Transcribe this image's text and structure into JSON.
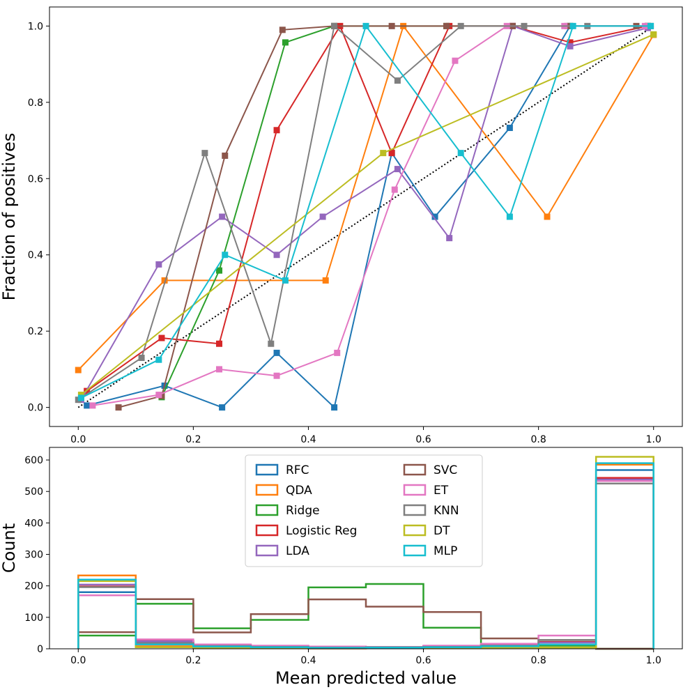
{
  "chart_data": [
    {
      "type": "line",
      "ylabel": "Fraction of positives",
      "xlim": [
        -0.05,
        1.05
      ],
      "ylim": [
        -0.05,
        1.05
      ],
      "xticks": [
        "0.0",
        "0.2",
        "0.4",
        "0.6",
        "0.8",
        "1.0"
      ],
      "yticks": [
        "0.0",
        "0.2",
        "0.4",
        "0.6",
        "0.8",
        "1.0"
      ],
      "xtick_values": [
        0,
        0.2,
        0.4,
        0.6,
        0.8,
        1.0
      ],
      "ytick_values": [
        0,
        0.2,
        0.4,
        0.6,
        0.8,
        1.0
      ],
      "reference_line": {
        "x": [
          0,
          1
        ],
        "y": [
          0,
          1
        ],
        "style": "dotted",
        "color": "#000000"
      },
      "series": [
        {
          "name": "RFC",
          "color": "#1f77b4",
          "x": [
            0.015,
            0.15,
            0.25,
            0.345,
            0.445,
            0.545,
            0.62,
            0.75,
            0.855,
            0.99
          ],
          "y": [
            0.005,
            0.057,
            0.0,
            0.143,
            0.0,
            0.667,
            0.5,
            0.733,
            1.0,
            1.0
          ]
        },
        {
          "name": "QDA",
          "color": "#ff7f0e",
          "x": [
            0.0,
            0.15,
            0.43,
            0.565,
            0.815,
            1.0
          ],
          "y": [
            0.098,
            0.333,
            0.333,
            1.0,
            0.5,
            0.977
          ]
        },
        {
          "name": "Ridge",
          "color": "#2ca02c",
          "x": [
            0.145,
            0.245,
            0.36,
            0.445,
            0.64,
            0.855,
            0.99
          ],
          "y": [
            0.027,
            0.359,
            0.957,
            1.0,
            1.0,
            1.0,
            1.0
          ]
        },
        {
          "name": "Logistic Reg",
          "color": "#d62728",
          "x": [
            0.015,
            0.145,
            0.245,
            0.345,
            0.455,
            0.545,
            0.645,
            0.755,
            0.855,
            0.99
          ],
          "y": [
            0.043,
            0.182,
            0.167,
            0.727,
            1.0,
            0.667,
            1.0,
            1.0,
            0.957,
            1.0
          ]
        },
        {
          "name": "LDA",
          "color": "#9467bd",
          "x": [
            0.005,
            0.14,
            0.25,
            0.345,
            0.425,
            0.555,
            0.645,
            0.755,
            0.855,
            0.99
          ],
          "y": [
            0.02,
            0.375,
            0.5,
            0.4,
            0.5,
            0.625,
            0.444,
            1.0,
            0.947,
            0.995
          ]
        },
        {
          "name": "SVC",
          "color": "#8c564b",
          "x": [
            0.07,
            0.145,
            0.255,
            0.355,
            0.445,
            0.545,
            0.64,
            0.755,
            0.85,
            0.97
          ],
          "y": [
            0.0,
            0.03,
            0.66,
            0.99,
            1.0,
            1.0,
            1.0,
            1.0,
            1.0,
            1.0
          ]
        },
        {
          "name": "ET",
          "color": "#e377c2",
          "x": [
            0.025,
            0.14,
            0.245,
            0.345,
            0.45,
            0.55,
            0.655,
            0.745,
            0.845,
            0.985
          ],
          "y": [
            0.005,
            0.033,
            0.1,
            0.083,
            0.143,
            0.571,
            0.909,
            1.0,
            1.0,
            1.0
          ]
        },
        {
          "name": "KNN",
          "color": "#7f7f7f",
          "x": [
            0.0,
            0.11,
            0.22,
            0.335,
            0.445,
            0.555,
            0.665,
            0.775,
            0.885,
            0.995
          ],
          "y": [
            0.02,
            0.13,
            0.667,
            0.167,
            1.0,
            0.857,
            1.0,
            1.0,
            1.0,
            1.0
          ]
        },
        {
          "name": "DT",
          "color": "#bcbd22",
          "x": [
            0.005,
            0.53,
            1.0
          ],
          "y": [
            0.033,
            0.667,
            0.978
          ]
        },
        {
          "name": "MLP",
          "color": "#17becf",
          "x": [
            0.005,
            0.14,
            0.255,
            0.36,
            0.5,
            0.665,
            0.75,
            0.86,
            0.995
          ],
          "y": [
            0.025,
            0.125,
            0.4,
            0.333,
            1.0,
            0.667,
            0.5,
            1.0,
            1.0
          ]
        }
      ]
    },
    {
      "type": "histogram",
      "xlabel": "Mean predicted value",
      "ylabel": "Count",
      "xlim": [
        -0.05,
        1.05
      ],
      "ylim": [
        0,
        640
      ],
      "xticks": [
        "0.0",
        "0.2",
        "0.4",
        "0.6",
        "0.8",
        "1.0"
      ],
      "yticks": [
        "0",
        "100",
        "200",
        "300",
        "400",
        "500",
        "600"
      ],
      "xtick_values": [
        0,
        0.2,
        0.4,
        0.6,
        0.8,
        1.0
      ],
      "ytick_values": [
        0,
        100,
        200,
        300,
        400,
        500,
        600
      ],
      "bin_edges": [
        0,
        0.1,
        0.2,
        0.3,
        0.4,
        0.5,
        0.6,
        0.7,
        0.8,
        0.9,
        1.0
      ],
      "histtype": "step",
      "legend_location": "upper-center",
      "legend_columns": 2,
      "series": [
        {
          "name": "RFC",
          "color": "#1f77b4",
          "counts": [
            180,
            22,
            8,
            6,
            4,
            5,
            6,
            10,
            12,
            568
          ]
        },
        {
          "name": "QDA",
          "color": "#ff7f0e",
          "counts": [
            233,
            8,
            2,
            2,
            1,
            2,
            2,
            2,
            3,
            585
          ]
        },
        {
          "name": "Ridge",
          "color": "#2ca02c",
          "counts": [
            42,
            143,
            65,
            92,
            195,
            206,
            67,
            14,
            10,
            0
          ]
        },
        {
          "name": "Logistic Reg",
          "color": "#d62728",
          "counts": [
            198,
            26,
            12,
            8,
            5,
            5,
            8,
            12,
            22,
            543
          ]
        },
        {
          "name": "LDA",
          "color": "#9467bd",
          "counts": [
            204,
            24,
            10,
            7,
            5,
            6,
            8,
            12,
            20,
            538
          ]
        },
        {
          "name": "SVC",
          "color": "#8c564b",
          "counts": [
            53,
            158,
            52,
            110,
            157,
            134,
            117,
            33,
            28,
            0
          ]
        },
        {
          "name": "ET",
          "color": "#e377c2",
          "counts": [
            170,
            30,
            14,
            10,
            7,
            6,
            10,
            16,
            42,
            533
          ]
        },
        {
          "name": "KNN",
          "color": "#7f7f7f",
          "counts": [
            196,
            18,
            9,
            6,
            4,
            5,
            6,
            10,
            28,
            525
          ]
        },
        {
          "name": "DT",
          "color": "#bcbd22",
          "counts": [
            215,
            5,
            3,
            2,
            2,
            3,
            2,
            3,
            4,
            610
          ]
        },
        {
          "name": "MLP",
          "color": "#17becf",
          "counts": [
            220,
            14,
            7,
            5,
            3,
            4,
            5,
            8,
            14,
            590
          ]
        }
      ]
    }
  ]
}
